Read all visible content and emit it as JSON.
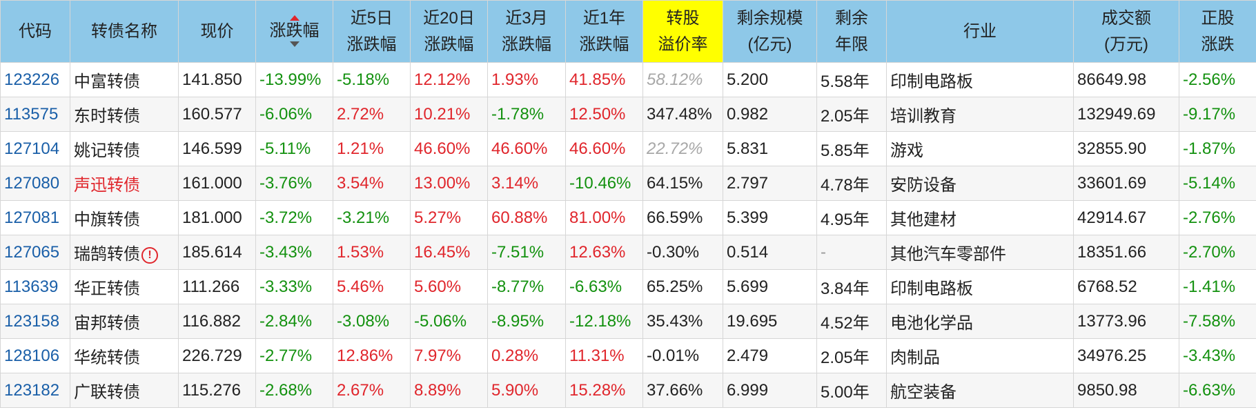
{
  "headers": [
    {
      "key": "code",
      "label": "代码"
    },
    {
      "key": "name",
      "label": "转债名称"
    },
    {
      "key": "price",
      "label": "现价"
    },
    {
      "key": "chg",
      "label": "涨跌幅"
    },
    {
      "key": "chg5d",
      "label": "近5日涨跌幅"
    },
    {
      "key": "chg20d",
      "label": "近20日涨跌幅"
    },
    {
      "key": "chg3m",
      "label": "近3月涨跌幅"
    },
    {
      "key": "chg1y",
      "label": "近1年涨跌幅"
    },
    {
      "key": "premium",
      "label": "转股溢价率"
    },
    {
      "key": "scale",
      "label": "剩余规模(亿元)"
    },
    {
      "key": "years",
      "label": "剩余年限"
    },
    {
      "key": "industry",
      "label": "行业"
    },
    {
      "key": "volume",
      "label": "成交额(万元)"
    },
    {
      "key": "stockchg",
      "label": "正股涨跌"
    }
  ],
  "header_lines": {
    "code": [
      "代码"
    ],
    "name": [
      "转债名称"
    ],
    "price": [
      "现价"
    ],
    "chg": [
      "涨跌幅"
    ],
    "chg5d": [
      "近5日",
      "涨跌幅"
    ],
    "chg20d": [
      "近20日",
      "涨跌幅"
    ],
    "chg3m": [
      "近3月",
      "涨跌幅"
    ],
    "chg1y": [
      "近1年",
      "涨跌幅"
    ],
    "premium": [
      "转股",
      "溢价率"
    ],
    "scale": [
      "剩余规模",
      "(亿元)"
    ],
    "years": [
      "剩余",
      "年限"
    ],
    "industry": [
      "行业"
    ],
    "volume": [
      "成交额",
      "(万元)"
    ],
    "stockchg": [
      "正股",
      "涨跌"
    ]
  },
  "colors": {
    "header_bg": "#8ec8e8",
    "highlight_header_bg": "#ffff00",
    "up": "#e0262c",
    "down": "#13910f",
    "code": "#1a5fa8"
  },
  "rows": [
    {
      "code": "123226",
      "name": "中富转债",
      "name_color": "default",
      "warning": false,
      "price": "141.850",
      "chg": "-13.99%",
      "chg5d": "-5.18%",
      "chg20d": "12.12%",
      "chg3m": "1.93%",
      "chg1y": "41.85%",
      "premium": "58.12%",
      "premium_style": "gray-it",
      "scale": "5.200",
      "years": "5.58年",
      "industry": "印制电路板",
      "volume": "86649.98",
      "stockchg": "-2.56%"
    },
    {
      "code": "113575",
      "name": "东时转债",
      "name_color": "default",
      "warning": false,
      "price": "160.577",
      "chg": "-6.06%",
      "chg5d": "2.72%",
      "chg20d": "10.21%",
      "chg3m": "-1.78%",
      "chg1y": "12.50%",
      "premium": "347.48%",
      "premium_style": "default",
      "scale": "0.982",
      "years": "2.05年",
      "industry": "培训教育",
      "volume": "132949.69",
      "stockchg": "-9.17%"
    },
    {
      "code": "127104",
      "name": "姚记转债",
      "name_color": "default",
      "warning": false,
      "price": "146.599",
      "chg": "-5.11%",
      "chg5d": "1.21%",
      "chg20d": "46.60%",
      "chg3m": "46.60%",
      "chg1y": "46.60%",
      "premium": "22.72%",
      "premium_style": "gray-it",
      "scale": "5.831",
      "years": "5.85年",
      "industry": "游戏",
      "volume": "32855.90",
      "stockchg": "-1.87%"
    },
    {
      "code": "127080",
      "name": "声迅转债",
      "name_color": "red",
      "warning": false,
      "price": "161.000",
      "chg": "-3.76%",
      "chg5d": "3.54%",
      "chg20d": "13.00%",
      "chg3m": "3.14%",
      "chg1y": "-10.46%",
      "premium": "64.15%",
      "premium_style": "default",
      "scale": "2.797",
      "years": "4.78年",
      "industry": "安防设备",
      "volume": "33601.69",
      "stockchg": "-5.14%"
    },
    {
      "code": "127081",
      "name": "中旗转债",
      "name_color": "default",
      "warning": false,
      "price": "181.000",
      "chg": "-3.72%",
      "chg5d": "-3.21%",
      "chg20d": "5.27%",
      "chg3m": "60.88%",
      "chg1y": "81.00%",
      "premium": "66.59%",
      "premium_style": "default",
      "scale": "5.399",
      "years": "4.95年",
      "industry": "其他建材",
      "volume": "42914.67",
      "stockchg": "-2.76%"
    },
    {
      "code": "127065",
      "name": "瑞鹄转债",
      "name_color": "default",
      "warning": true,
      "price": "185.614",
      "chg": "-3.43%",
      "chg5d": "1.53%",
      "chg20d": "16.45%",
      "chg3m": "-7.51%",
      "chg1y": "12.63%",
      "premium": "-0.30%",
      "premium_style": "default",
      "scale": "0.514",
      "years": "-",
      "industry": "其他汽车零部件",
      "volume": "18351.66",
      "stockchg": "-2.70%"
    },
    {
      "code": "113639",
      "name": "华正转债",
      "name_color": "default",
      "warning": false,
      "price": "111.266",
      "chg": "-3.33%",
      "chg5d": "5.46%",
      "chg20d": "5.60%",
      "chg3m": "-8.77%",
      "chg1y": "-6.63%",
      "premium": "65.25%",
      "premium_style": "default",
      "scale": "5.699",
      "years": "3.84年",
      "industry": "印制电路板",
      "volume": "6768.52",
      "stockchg": "-1.41%"
    },
    {
      "code": "123158",
      "name": "宙邦转债",
      "name_color": "default",
      "warning": false,
      "price": "116.882",
      "chg": "-2.84%",
      "chg5d": "-3.08%",
      "chg20d": "-5.06%",
      "chg3m": "-8.95%",
      "chg1y": "-12.18%",
      "premium": "35.43%",
      "premium_style": "default",
      "scale": "19.695",
      "years": "4.52年",
      "industry": "电池化学品",
      "volume": "13773.96",
      "stockchg": "-7.58%"
    },
    {
      "code": "128106",
      "name": "华统转债",
      "name_color": "default",
      "warning": false,
      "price": "226.729",
      "chg": "-2.77%",
      "chg5d": "12.86%",
      "chg20d": "7.97%",
      "chg3m": "0.28%",
      "chg1y": "11.31%",
      "premium": "-0.01%",
      "premium_style": "default",
      "scale": "2.479",
      "years": "2.05年",
      "industry": "肉制品",
      "volume": "34976.25",
      "stockchg": "-3.43%"
    },
    {
      "code": "123182",
      "name": "广联转债",
      "name_color": "default",
      "warning": false,
      "price": "115.276",
      "chg": "-2.68%",
      "chg5d": "2.67%",
      "chg20d": "8.89%",
      "chg3m": "5.90%",
      "chg1y": "15.28%",
      "premium": "37.66%",
      "premium_style": "default",
      "scale": "6.999",
      "years": "5.00年",
      "industry": "航空装备",
      "volume": "9850.98",
      "stockchg": "-6.63%"
    }
  ]
}
